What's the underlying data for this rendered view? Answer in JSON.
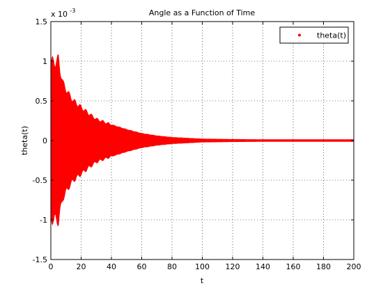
{
  "chart_data": {
    "type": "scatter",
    "title": "Angle as a Function of Time",
    "xlabel": "t",
    "ylabel": "theta(t)",
    "y_scale_label": "x 10",
    "y_scale_exponent": "-3",
    "xlim": [
      0,
      200
    ],
    "ylim": [
      -1.5,
      1.5
    ],
    "x_ticks": [
      0,
      20,
      40,
      60,
      80,
      100,
      120,
      140,
      160,
      180,
      200
    ],
    "y_ticks": [
      -1.5,
      -1,
      -0.5,
      0,
      0.5,
      1,
      1.5
    ],
    "x_tick_labels": [
      "0",
      "20",
      "40",
      "60",
      "80",
      "100",
      "120",
      "140",
      "160",
      "180",
      "200"
    ],
    "y_tick_labels": [
      "-1.5",
      "-1",
      "-0.5",
      "0",
      "0.5",
      "1",
      "1.5"
    ],
    "grid": true,
    "legend_position": "top-right",
    "series": [
      {
        "name": "theta(t)",
        "color": "#ff0000",
        "marker": "point",
        "envelope": {
          "x": [
            0,
            1,
            2,
            3,
            4,
            5,
            6,
            8,
            10,
            12,
            15,
            20,
            25,
            30,
            40,
            50,
            60,
            70,
            80,
            90,
            100,
            120,
            150,
            200
          ],
          "upper": [
            0.95,
            1.0,
            1.0,
            0.98,
            1.0,
            1.03,
            0.9,
            0.72,
            0.65,
            0.58,
            0.5,
            0.42,
            0.34,
            0.27,
            0.2,
            0.14,
            0.09,
            0.06,
            0.04,
            0.03,
            0.02,
            0.015,
            0.01,
            0.01
          ],
          "lower": [
            -0.95,
            -1.0,
            -1.0,
            -0.98,
            -1.0,
            -1.02,
            -0.9,
            -0.72,
            -0.65,
            -0.58,
            -0.5,
            -0.42,
            -0.34,
            -0.27,
            -0.2,
            -0.14,
            -0.09,
            -0.06,
            -0.04,
            -0.03,
            -0.02,
            -0.015,
            -0.01,
            -0.01
          ]
        }
      }
    ]
  }
}
